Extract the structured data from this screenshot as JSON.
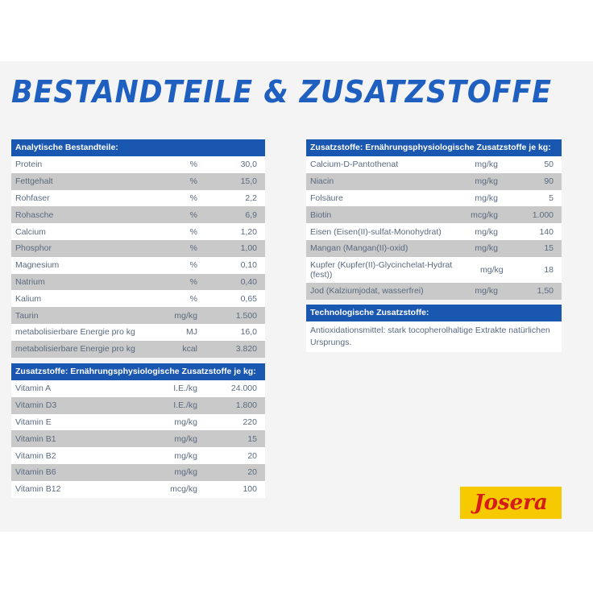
{
  "title": "BESTANDTEILE & ZUSATZSTOFFE",
  "analytische": {
    "header": "Analytische Bestandteile:",
    "rows": [
      {
        "name": "Protein",
        "unit": "%",
        "value": "30,0"
      },
      {
        "name": "Fettgehalt",
        "unit": "%",
        "value": "15,0"
      },
      {
        "name": "Rohfaser",
        "unit": "%",
        "value": "2,2"
      },
      {
        "name": "Rohasche",
        "unit": "%",
        "value": "6,9"
      },
      {
        "name": "Calcium",
        "unit": "%",
        "value": "1,20"
      },
      {
        "name": "Phosphor",
        "unit": "%",
        "value": "1,00"
      },
      {
        "name": "Magnesium",
        "unit": "%",
        "value": "0,10"
      },
      {
        "name": "Natrium",
        "unit": "%",
        "value": "0,40"
      },
      {
        "name": "Kalium",
        "unit": "%",
        "value": "0,65"
      },
      {
        "name": "Taurin",
        "unit": "mg/kg",
        "value": "1.500"
      },
      {
        "name": "metabolisierbare Energie pro kg",
        "unit": "MJ",
        "value": "16,0"
      },
      {
        "name": "metabolisierbare Energie pro kg",
        "unit": "kcal",
        "value": "3.820"
      }
    ]
  },
  "vitamine": {
    "header": "Zusatzstoffe: Ernährungsphysiologische Zusatzstoffe je kg:",
    "rows": [
      {
        "name": "Vitamin A",
        "unit": "I.E./kg",
        "value": "24.000"
      },
      {
        "name": "Vitamin D3",
        "unit": "I.E./kg",
        "value": "1.800"
      },
      {
        "name": "Vitamin E",
        "unit": "mg/kg",
        "value": "220"
      },
      {
        "name": "Vitamin B1",
        "unit": "mg/kg",
        "value": "15"
      },
      {
        "name": "Vitamin B2",
        "unit": "mg/kg",
        "value": "20"
      },
      {
        "name": "Vitamin B6",
        "unit": "mg/kg",
        "value": "20"
      },
      {
        "name": "Vitamin B12",
        "unit": "mcg/kg",
        "value": "100"
      }
    ]
  },
  "zusatz": {
    "header": "Zusatzstoffe: Ernährungsphysiologische Zusatzstoffe je kg:",
    "rows": [
      {
        "name": "Calcium-D-Pantothenat",
        "unit": "mg/kg",
        "value": "50"
      },
      {
        "name": "Niacin",
        "unit": "mg/kg",
        "value": "90"
      },
      {
        "name": "Folsäure",
        "unit": "mg/kg",
        "value": "5"
      },
      {
        "name": "Biotin",
        "unit": "mcg/kg",
        "value": "1.000"
      },
      {
        "name": "Eisen (Eisen(II)-sulfat-Monohydrat)",
        "unit": "mg/kg",
        "value": "140"
      },
      {
        "name": "Mangan (Mangan(II)-oxid)",
        "unit": "mg/kg",
        "value": "15"
      },
      {
        "name": "Kupfer (Kupfer(II)-Glycinchelat-Hydrat (fest))",
        "unit": "mg/kg",
        "value": "18"
      },
      {
        "name": "Jod (Kalziumjodat, wasserfrei)",
        "unit": "mg/kg",
        "value": "1,50"
      }
    ]
  },
  "technologisch": {
    "header": "Technologische Zusatzstoffe:",
    "text": "Antioxidationsmittel: stark tocopherolhaltige Extrakte natürlichen Ursprungs."
  },
  "logo": {
    "text": "Josera",
    "bg": "#f7c900",
    "fg": "#d61b1b"
  },
  "colors": {
    "header_bg": "#1a57b0",
    "stripe": "#c9c9c9",
    "title": "#1f5fbf"
  }
}
